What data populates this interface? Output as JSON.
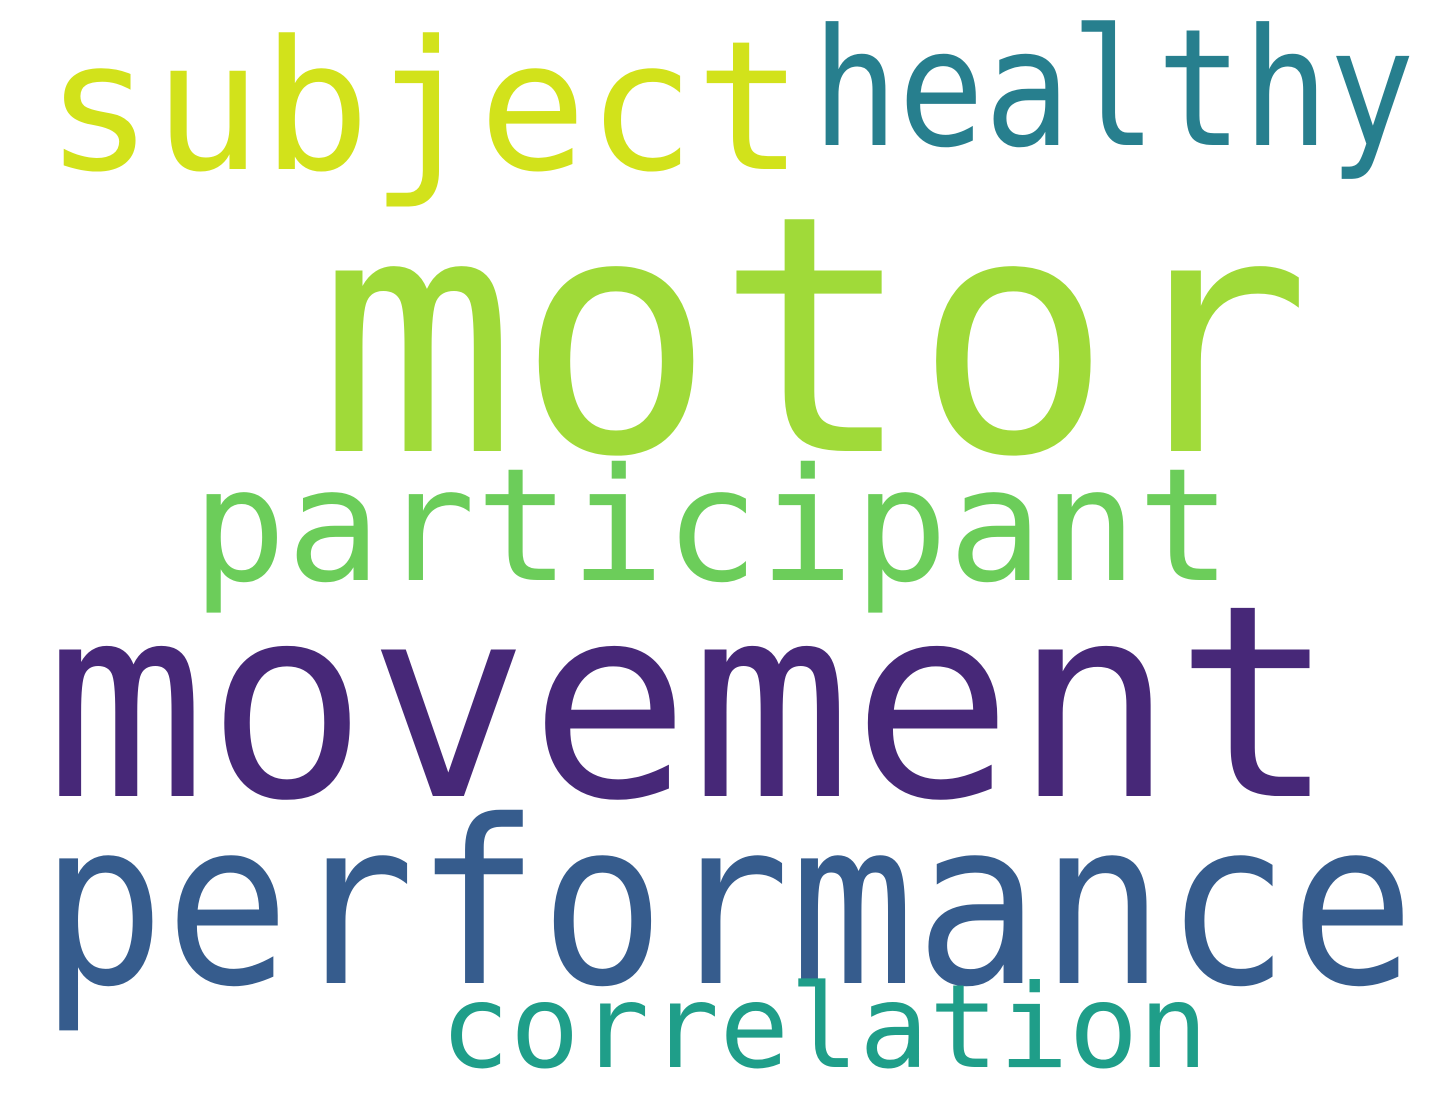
{
  "word_cloud": {
    "words": {
      "motor": {
        "text": "motor",
        "color": "#a0da39"
      },
      "movement": {
        "text": "movement",
        "color": "#472878"
      },
      "performance": {
        "text": "performance",
        "color": "#365c8d"
      },
      "subject": {
        "text": "subject",
        "color": "#d2e21b"
      },
      "healthy": {
        "text": "healthy",
        "color": "#277f8e"
      },
      "participant": {
        "text": "participant",
        "color": "#6ccd5a"
      },
      "correlation": {
        "text": "correlation",
        "color": "#1f9e89"
      }
    }
  }
}
